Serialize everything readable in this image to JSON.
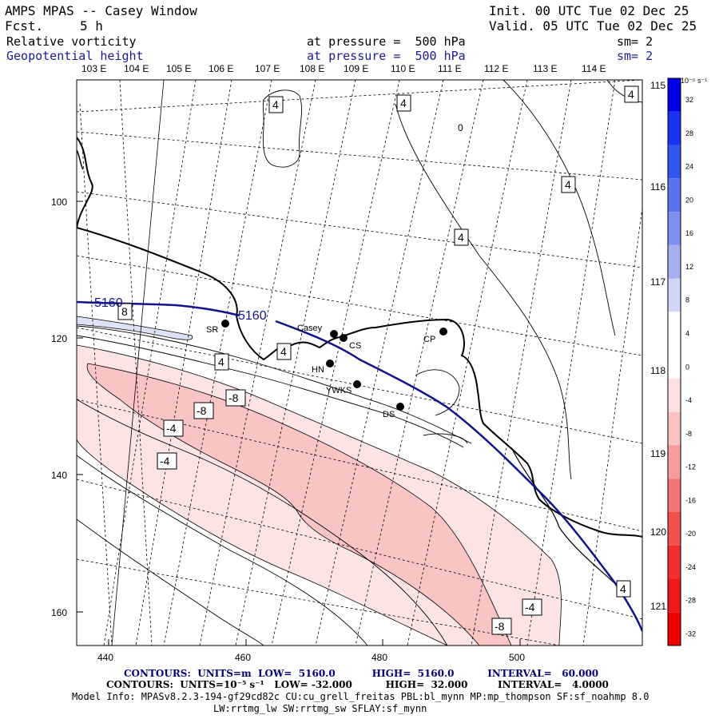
{
  "header": {
    "title": "AMPS MPAS -- Casey Window",
    "fcst_label": "Fcst.",
    "fcst_value": "5 h",
    "init": "Init. 00 UTC Tue 02 Dec 25",
    "valid": "Valid. 05 UTC Tue 02 Dec 25",
    "field1": {
      "name": "Relative vorticity",
      "level": "at pressure =  500 hPa",
      "sm": "sm= 2"
    },
    "field2": {
      "name": "Geopotential height",
      "level": "at pressure =  500 hPa",
      "sm": "sm= 2"
    }
  },
  "longitude_labels_top": [
    "103 E",
    "104 E",
    "105 E",
    "106 E",
    "107 E",
    "108 E",
    "109 E",
    "110 E",
    "111 E",
    "112 E",
    "113 E",
    "114 E"
  ],
  "longitude_labels_right": [
    "115 E",
    "116 E",
    "117 E",
    "118 E",
    "119 E",
    "120 E",
    "121 E"
  ],
  "x_axis_ticks": [
    "440",
    "460",
    "480",
    "500"
  ],
  "y_axis_ticks": [
    "100",
    "120",
    "140",
    "160"
  ],
  "stations": [
    {
      "name": "SR"
    },
    {
      "name": "Casey"
    },
    {
      "name": "CS"
    },
    {
      "name": "CP"
    },
    {
      "name": "HN"
    },
    {
      "name": "YWKS"
    },
    {
      "name": "DS"
    }
  ],
  "contour_labels": [
    "4",
    "4",
    "4",
    "0",
    "4",
    "4",
    "8",
    "4",
    "4",
    "-8",
    "-8",
    "-4",
    "-4",
    "-4",
    "-8",
    "4"
  ],
  "height_labels": [
    "5160",
    "5160"
  ],
  "colorbar": {
    "unit": "10⁻⁵ s⁻¹",
    "labels": [
      "32",
      "28",
      "24",
      "20",
      "16",
      "12",
      "8",
      "4",
      "0",
      "-4",
      "-8",
      "-12",
      "-16",
      "-20",
      "-24",
      "-28",
      "-32"
    ],
    "colors": [
      "#0000e6",
      "#1a33f0",
      "#3355f0",
      "#5a73f0",
      "#8090f0",
      "#a8b0f0",
      "#d0d6f8",
      "#ffffff",
      "#ffffff",
      "#fde0e0",
      "#fac3c3",
      "#f79c9c",
      "#f47575",
      "#f24f4f",
      "#f03030",
      "#f01818",
      "#f00000"
    ]
  },
  "footer": {
    "line1": "CONTOURS:  UNITS=m  LOW=  5160.0           HIGH=  5160.0          INTERVAL=   60.000",
    "line2": "CONTOURS:  UNITS=10⁻⁵ s⁻¹   LOW= -32.000          HIGH=  32.000         INTERVAL=   4.0000",
    "line3": "Model Info: MPASv8.2.3-194-gf29cd82c CU:cu_grell_freitas PBL:bl_mynn MP:mp_thompson SF:sf_noahmp 8.0",
    "line4": "LW:rrtmg_lw SW:rrtmg_sw SFLAY:sf_mynn"
  }
}
